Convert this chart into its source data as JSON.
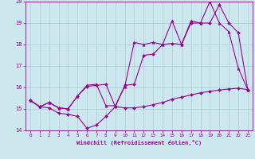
{
  "xlabel": "Windchill (Refroidissement éolien,°C)",
  "bg_color": "#cce8ee",
  "grid_color": "#aaccd4",
  "line_color": "#990099",
  "xlim": [
    -0.5,
    23.5
  ],
  "ylim": [
    14,
    20
  ],
  "xticks": [
    0,
    1,
    2,
    3,
    4,
    5,
    6,
    7,
    8,
    9,
    10,
    11,
    12,
    13,
    14,
    15,
    16,
    17,
    18,
    19,
    20,
    21,
    22,
    23
  ],
  "yticks": [
    14,
    15,
    16,
    17,
    18,
    19,
    20
  ],
  "s1_x": [
    0,
    1,
    2,
    3,
    4,
    5,
    6,
    7,
    8,
    9,
    10,
    11,
    12,
    13,
    14,
    15,
    16,
    17,
    18,
    19,
    20,
    21,
    22,
    23
  ],
  "s1_y": [
    15.4,
    15.1,
    15.05,
    14.8,
    14.75,
    14.65,
    14.1,
    14.25,
    14.65,
    15.1,
    15.05,
    15.05,
    15.1,
    15.2,
    15.3,
    15.45,
    15.55,
    15.65,
    15.75,
    15.82,
    15.88,
    15.93,
    15.96,
    15.9
  ],
  "s2_x": [
    0,
    1,
    2,
    3,
    4,
    5,
    6,
    7,
    8,
    9,
    10,
    11,
    12,
    13,
    14,
    15,
    16,
    17,
    18,
    19,
    20,
    21,
    22,
    23
  ],
  "s2_y": [
    15.4,
    15.1,
    15.3,
    15.05,
    15.0,
    15.6,
    16.1,
    16.15,
    15.15,
    15.15,
    16.05,
    18.1,
    18.0,
    18.1,
    18.0,
    19.1,
    18.0,
    19.1,
    19.0,
    20.0,
    19.0,
    18.6,
    16.9,
    15.9
  ],
  "s3_x": [
    0,
    1,
    2,
    3,
    4,
    5,
    6,
    7,
    8,
    9,
    10,
    11,
    12,
    13,
    14,
    15,
    16,
    17,
    18,
    19,
    20,
    21,
    22,
    23
  ],
  "s3_y": [
    15.4,
    15.1,
    15.3,
    15.05,
    15.0,
    15.6,
    16.05,
    16.1,
    16.15,
    15.1,
    16.1,
    16.15,
    17.5,
    17.55,
    18.0,
    18.05,
    18.0,
    19.0,
    19.0,
    19.0,
    19.85,
    19.0,
    18.55,
    15.9
  ]
}
